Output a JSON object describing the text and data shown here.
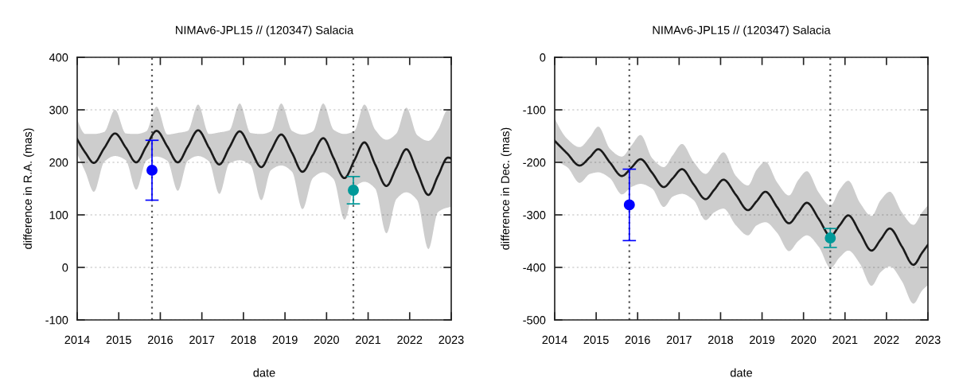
{
  "chart_data": [
    {
      "type": "line",
      "title": "NIMAv6-JPL15 // (120347) Salacia",
      "xlabel": "date",
      "ylabel": "difference in R.A. (mas)",
      "xlim": [
        2014,
        2023
      ],
      "xticks": [
        2014,
        2015,
        2016,
        2017,
        2018,
        2019,
        2020,
        2021,
        2022,
        2023
      ],
      "ylim": [
        -100,
        400
      ],
      "yticks": [
        -100,
        0,
        100,
        200,
        300,
        400
      ],
      "grid": "y",
      "series": [
        {
          "color": "#1a1a1a",
          "x": [
            2014.0,
            2014.2,
            2014.4,
            2014.65,
            2014.91,
            2015.17,
            2015.42,
            2015.66,
            2015.91,
            2016.17,
            2016.42,
            2016.66,
            2016.91,
            2017.17,
            2017.42,
            2017.66,
            2017.91,
            2018.17,
            2018.43,
            2018.66,
            2018.91,
            2019.17,
            2019.42,
            2019.67,
            2019.92,
            2020.17,
            2020.43,
            2020.67,
            2020.91,
            2021.17,
            2021.44,
            2021.68,
            2021.92,
            2022.18,
            2022.45,
            2022.68,
            2022.92,
            2023.0
          ],
          "values": [
            244,
            218,
            199,
            227,
            255,
            228,
            200,
            230,
            260,
            230,
            200,
            230,
            261,
            228,
            196,
            228,
            259,
            225,
            191,
            222,
            253,
            218,
            182,
            214,
            246,
            208,
            170,
            204,
            238,
            196,
            155,
            190,
            225,
            182,
            138,
            174,
            209,
            207
          ],
          "upper": [
            282,
            254,
            254,
            258,
            300,
            255,
            254,
            259,
            306,
            253,
            256,
            260,
            310,
            254,
            257,
            261,
            312,
            256,
            254,
            259,
            312,
            260,
            253,
            259,
            312,
            262,
            254,
            260,
            310,
            262,
            243,
            255,
            304,
            252,
            241,
            262,
            300,
            299
          ],
          "lower": [
            216,
            181,
            144,
            201,
            212,
            204,
            148,
            203,
            211,
            203,
            146,
            203,
            212,
            202,
            140,
            198,
            204,
            195,
            128,
            185,
            194,
            182,
            111,
            170,
            181,
            168,
            91,
            152,
            163,
            150,
            65,
            130,
            143,
            128,
            35,
            105,
            114,
            115
          ]
        },
        {
          "type": "scatter",
          "marker": "circle",
          "color": "#0000ff",
          "x": [
            2015.8
          ],
          "values": [
            185
          ],
          "errors": [
            57
          ]
        },
        {
          "type": "scatter",
          "marker": "circle",
          "color": "#009999",
          "x": [
            2020.645
          ],
          "values": [
            147
          ],
          "errors": [
            26
          ]
        }
      ],
      "ref_lines": [
        {
          "axis": "x",
          "value": 2015.8,
          "color": "#555555",
          "line_style": "dotted"
        },
        {
          "axis": "x",
          "value": 2020.645,
          "color": "#555555",
          "line_style": "dotted"
        }
      ]
    },
    {
      "type": "line",
      "title": "NIMAv6-JPL15 // (120347) Salacia",
      "xlabel": "date",
      "ylabel": "difference in Dec. (mas)",
      "xlim": [
        2014,
        2023
      ],
      "xticks": [
        2014,
        2015,
        2016,
        2017,
        2018,
        2019,
        2020,
        2021,
        2022,
        2023
      ],
      "ylim": [
        -500,
        0
      ],
      "yticks": [
        -500,
        -400,
        -300,
        -200,
        -100,
        0
      ],
      "grid": "y",
      "series": [
        {
          "color": "#1a1a1a",
          "x": [
            2014.0,
            2014.3,
            2014.6,
            2014.85,
            2015.05,
            2015.33,
            2015.62,
            2015.85,
            2016.07,
            2016.35,
            2016.63,
            2016.85,
            2017.07,
            2017.35,
            2017.64,
            2017.85,
            2018.07,
            2018.37,
            2018.66,
            2018.87,
            2019.08,
            2019.37,
            2019.65,
            2019.87,
            2020.08,
            2020.37,
            2020.65,
            2020.87,
            2021.08,
            2021.36,
            2021.64,
            2021.86,
            2022.08,
            2022.37,
            2022.65,
            2022.86,
            2023.0
          ],
          "values": [
            -159,
            -183,
            -206,
            -190,
            -175,
            -200,
            -226,
            -210,
            -194,
            -220,
            -247,
            -230,
            -213,
            -242,
            -270,
            -252,
            -233,
            -262,
            -291,
            -274,
            -256,
            -286,
            -316,
            -296,
            -277,
            -308,
            -340,
            -320,
            -301,
            -334,
            -368,
            -347,
            -326,
            -360,
            -395,
            -372,
            -357
          ],
          "upper": [
            -116,
            -155,
            -171,
            -152,
            -132,
            -174,
            -189,
            -168,
            -148,
            -192,
            -209,
            -186,
            -165,
            -199,
            -222,
            -202,
            -181,
            -226,
            -244,
            -214,
            -199,
            -239,
            -263,
            -234,
            -217,
            -258,
            -282,
            -252,
            -235,
            -277,
            -302,
            -272,
            -256,
            -295,
            -319,
            -295,
            -282
          ],
          "lower": [
            -199,
            -209,
            -239,
            -222,
            -219,
            -230,
            -261,
            -247,
            -241,
            -250,
            -285,
            -265,
            -260,
            -272,
            -310,
            -295,
            -288,
            -320,
            -339,
            -320,
            -314,
            -335,
            -369,
            -350,
            -339,
            -361,
            -401,
            -381,
            -368,
            -393,
            -435,
            -409,
            -398,
            -426,
            -469,
            -444,
            -434
          ]
        },
        {
          "type": "scatter",
          "marker": "circle",
          "color": "#0000ff",
          "x": [
            2015.8
          ],
          "values": [
            -281
          ],
          "errors": [
            68
          ]
        },
        {
          "type": "scatter",
          "marker": "circle",
          "color": "#009999",
          "x": [
            2020.645
          ],
          "values": [
            -344
          ],
          "errors": [
            18
          ]
        }
      ],
      "ref_lines": [
        {
          "axis": "x",
          "value": 2015.8,
          "color": "#555555",
          "line_style": "dotted"
        },
        {
          "axis": "x",
          "value": 2020.645,
          "color": "#555555",
          "line_style": "dotted"
        }
      ]
    }
  ]
}
